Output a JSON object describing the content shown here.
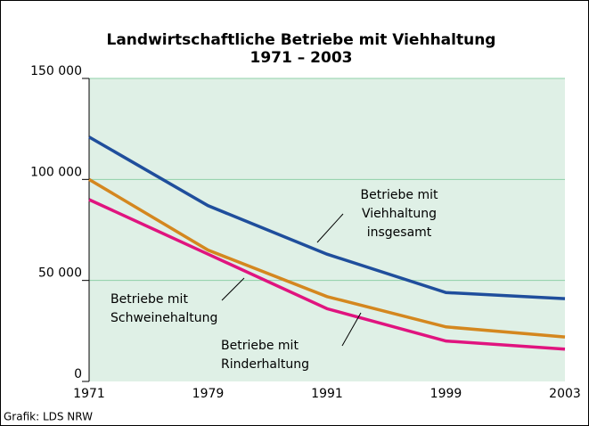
{
  "chart_data": {
    "type": "line",
    "title": "Landwirtschaftliche Betriebe mit Viehhaltung",
    "subtitle": "1971 – 2003",
    "categories": [
      "1971",
      "1979",
      "1991",
      "1999",
      "2003"
    ],
    "series": [
      {
        "label": [
          "Betriebe mit",
          "Viehhaltung",
          "insgesamt"
        ],
        "color": "#1f4e9c",
        "values": [
          121000,
          87000,
          63000,
          44000,
          41000
        ]
      },
      {
        "label": [
          "Betriebe mit",
          "Schweinehaltung"
        ],
        "color": "#d4871f",
        "values": [
          100000,
          65000,
          42000,
          27000,
          22000
        ]
      },
      {
        "label": [
          "Betriebe mit",
          "Rinderhaltung"
        ],
        "color": "#e0147f",
        "values": [
          90000,
          63000,
          36000,
          20000,
          16000
        ]
      }
    ],
    "ylim": [
      0,
      150000
    ],
    "yticks": [
      0,
      {
        "value": 50000,
        "label": "50 000"
      },
      {
        "value": 100000,
        "label": "100 000"
      },
      {
        "value": 150000,
        "label": "150 000"
      }
    ],
    "grid": true,
    "source": "Grafik: LDS NRW"
  }
}
